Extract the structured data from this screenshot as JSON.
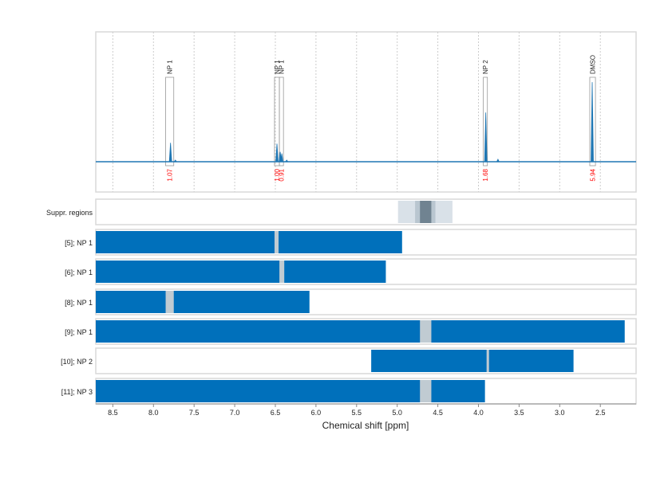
{
  "chart_data": {
    "type": "nmr-spectrum-with-range-bars",
    "xlabel": "Chemical shift [ppm]",
    "xlim": [
      8.71,
      2.06
    ],
    "x_reversed": true,
    "xticks": [
      8.5,
      8.0,
      7.5,
      7.0,
      6.5,
      6.0,
      5.5,
      5.0,
      4.5,
      4.0,
      3.5,
      3.0,
      2.5
    ],
    "grid": "vertical dotted",
    "colors": {
      "spectrum": "#1f77b4",
      "bar": "#0070bb",
      "gap": "#c0cbd2",
      "integral": "#ff0000",
      "frame": "#d9d9d9"
    },
    "spectrum": {
      "peaks": [
        {
          "ppm": 7.79,
          "rel_height": 0.23
        },
        {
          "ppm": 7.73,
          "rel_height": 0.02
        },
        {
          "ppm": 6.48,
          "rel_height": 0.22
        },
        {
          "ppm": 6.44,
          "rel_height": 0.12
        },
        {
          "ppm": 6.42,
          "rel_height": 0.1
        },
        {
          "ppm": 6.36,
          "rel_height": 0.02
        },
        {
          "ppm": 3.91,
          "rel_height": 0.6
        },
        {
          "ppm": 3.76,
          "rel_height": 0.03
        },
        {
          "ppm": 2.6,
          "rel_height": 0.97
        }
      ],
      "annotations": [
        {
          "label": "NP 1",
          "range": [
            7.85,
            7.75
          ],
          "integral": "1.07"
        },
        {
          "label": "NP 1",
          "range": [
            6.51,
            6.45
          ],
          "integral": "1.00"
        },
        {
          "label": "NP 1",
          "range": [
            6.45,
            6.4
          ],
          "integral": "0.91"
        },
        {
          "label": "NP 2",
          "range": [
            3.94,
            3.89
          ],
          "integral": "1.68"
        },
        {
          "label": "DMSO",
          "range": [
            2.63,
            2.56
          ],
          "integral": "5.94"
        }
      ]
    },
    "suppressed_regions": {
      "label": "Suppr. regions",
      "bands": [
        {
          "range": [
            4.99,
            4.32
          ],
          "level": "light"
        },
        {
          "range": [
            4.78,
            4.53
          ],
          "level": "medium"
        },
        {
          "range": [
            4.72,
            4.58
          ],
          "level": "dark"
        }
      ]
    },
    "rows": [
      {
        "label": "[5]; NP 1",
        "range": [
          8.71,
          4.94
        ],
        "gap": [
          6.51,
          6.46
        ]
      },
      {
        "label": "[6]; NP 1",
        "range": [
          8.71,
          5.14
        ],
        "gap": [
          6.45,
          6.39
        ]
      },
      {
        "label": "[8]; NP 1",
        "range": [
          8.71,
          6.08
        ],
        "gap": [
          7.85,
          7.75
        ]
      },
      {
        "label": "[9]; NP 1",
        "range": [
          8.71,
          2.2
        ],
        "gap": [
          4.72,
          4.58
        ]
      },
      {
        "label": "[10]; NP 2",
        "range": [
          5.32,
          2.83
        ],
        "gap": [
          3.9,
          3.87
        ]
      },
      {
        "label": "[11]; NP 3",
        "range": [
          8.71,
          3.92
        ],
        "gap": [
          4.72,
          4.58
        ]
      }
    ]
  }
}
